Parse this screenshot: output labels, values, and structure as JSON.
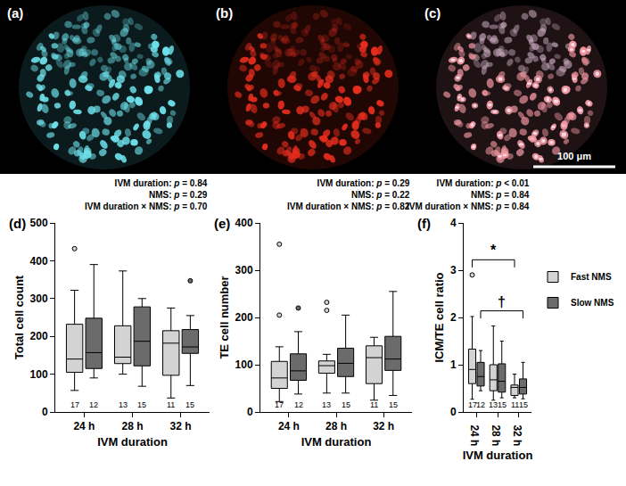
{
  "images": {
    "panels": [
      "(a)",
      "(b)",
      "(c)"
    ],
    "scale_bar": "100 μm"
  },
  "chart_data": [
    {
      "type": "box",
      "panel": "(d)",
      "y_label": "Total cell count",
      "x_label": "IVM duration",
      "categories": [
        "24 h",
        "28 h",
        "32 h"
      ],
      "ylim": [
        0,
        500
      ],
      "yticks": [
        0,
        100,
        200,
        300,
        400,
        500
      ],
      "stats": [
        "IVM duration: p = 0.84",
        "NMS: p = 0.29",
        "IVM duration × NMS: p = 0.70"
      ],
      "series": [
        {
          "name": "Fast NMS",
          "color": "#d3d3d3",
          "lowerfence": [
            57,
            100,
            37
          ],
          "q1": [
            105,
            128,
            97
          ],
          "median": [
            140,
            145,
            182
          ],
          "q3": [
            232,
            228,
            215
          ],
          "upperfence": [
            322,
            373,
            275
          ],
          "outliers": [
            [
              432
            ],
            [],
            []
          ],
          "n": [
            17,
            13,
            11
          ]
        },
        {
          "name": "Slow NMS",
          "color": "#6b6b6b",
          "lowerfence": [
            90,
            68,
            70
          ],
          "q1": [
            115,
            122,
            155
          ],
          "median": [
            157,
            187,
            172
          ],
          "q3": [
            248,
            278,
            218
          ],
          "upperfence": [
            390,
            300,
            255
          ],
          "outliers": [
            [],
            [],
            [
              347
            ]
          ],
          "n": [
            12,
            15,
            15
          ]
        }
      ]
    },
    {
      "type": "box",
      "panel": "(e)",
      "y_label": "TE cell number",
      "x_label": "IVM duration",
      "categories": [
        "24 h",
        "28 h",
        "32 h"
      ],
      "ylim": [
        0,
        400
      ],
      "yticks": [
        0,
        100,
        200,
        300,
        400
      ],
      "stats": [
        "IVM duration: p = 0.29",
        "NMS: p = 0.22",
        "IVM duration × NMS: p = 0.82"
      ],
      "series": [
        {
          "name": "Fast NMS",
          "color": "#d3d3d3",
          "lowerfence": [
            22,
            40,
            25
          ],
          "q1": [
            50,
            82,
            60
          ],
          "median": [
            72,
            98,
            115
          ],
          "q3": [
            107,
            108,
            140
          ],
          "upperfence": [
            138,
            122,
            158
          ],
          "outliers": [
            [
              205,
              355
            ],
            [
              215,
              232
            ],
            []
          ],
          "n": [
            17,
            13,
            11
          ]
        },
        {
          "name": "Slow NMS",
          "color": "#6b6b6b",
          "lowerfence": [
            38,
            40,
            35
          ],
          "q1": [
            67,
            75,
            88
          ],
          "median": [
            87,
            103,
            112
          ],
          "q3": [
            123,
            135,
            160
          ],
          "upperfence": [
            170,
            205,
            255
          ],
          "outliers": [
            [
              220
            ],
            [],
            []
          ],
          "n": [
            12,
            15,
            15
          ]
        }
      ]
    },
    {
      "type": "box",
      "panel": "(f)",
      "y_label": "ICM/TE cell ratio",
      "x_label": "IVM duration",
      "categories": [
        "24 h",
        "28 h",
        "32 h"
      ],
      "ylim": [
        0,
        4
      ],
      "yticks": [
        0,
        1,
        2,
        3,
        4
      ],
      "stats": [
        "IVM duration: p < 0.01",
        "NMS: p = 0.84",
        "IVM duration × NMS: p = 0.84"
      ],
      "legend": "right",
      "series": [
        {
          "name": "Fast NMS",
          "color": "#d3d3d3",
          "lowerfence": [
            0.27,
            0.25,
            0.3
          ],
          "q1": [
            0.6,
            0.45,
            0.35
          ],
          "median": [
            0.9,
            0.68,
            0.52
          ],
          "q3": [
            1.33,
            1.0,
            0.57
          ],
          "upperfence": [
            2.02,
            1.82,
            0.8
          ],
          "outliers": [
            [
              2.9
            ],
            [],
            []
          ],
          "n": [
            17,
            13,
            11
          ]
        },
        {
          "name": "Slow NMS",
          "color": "#6b6b6b",
          "lowerfence": [
            0.45,
            0.3,
            0.28
          ],
          "q1": [
            0.55,
            0.42,
            0.38
          ],
          "median": [
            0.75,
            0.65,
            0.52
          ],
          "q3": [
            1.05,
            1.02,
            0.7
          ],
          "upperfence": [
            1.3,
            1.5,
            1.05
          ],
          "outliers": [
            [],
            [],
            []
          ],
          "n": [
            12,
            15,
            15
          ]
        }
      ],
      "significance": [
        {
          "text": "*",
          "from": {
            "category": "24 h",
            "series": "Fast NMS"
          },
          "to": {
            "category": "32 h",
            "series": "Fast NMS"
          }
        },
        {
          "text": "†",
          "from": {
            "category": "24 h",
            "series": "Slow NMS"
          },
          "to": {
            "category": "32 h",
            "series": "Slow NMS"
          }
        }
      ]
    }
  ]
}
